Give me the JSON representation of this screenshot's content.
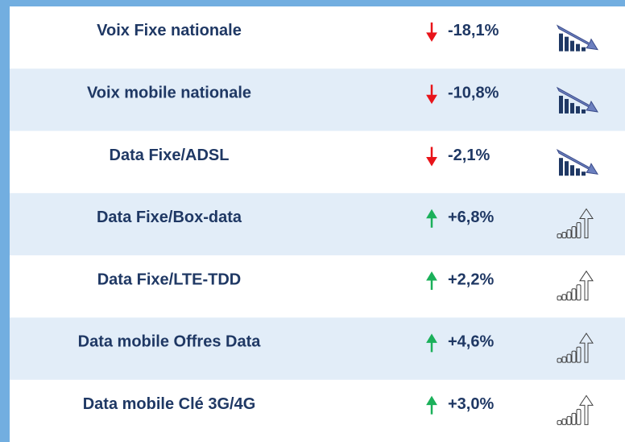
{
  "table": {
    "rows": [
      [
        "Voix Fixe nationale",
        "-18,1%"
      ],
      [
        "Voix mobile nationale",
        "-10,8%"
      ],
      [
        "Data Fixe/ADSL",
        "-2,1%"
      ],
      [
        "Data Fixe/Box-data",
        "+6,8%"
      ],
      [
        "Data Fixe/LTE-TDD",
        "+2,2%"
      ],
      [
        "Data mobile Offres Data",
        "+4,6%"
      ],
      [
        "Data mobile Clé 3G/4G",
        "+3,0%"
      ]
    ]
  }
}
